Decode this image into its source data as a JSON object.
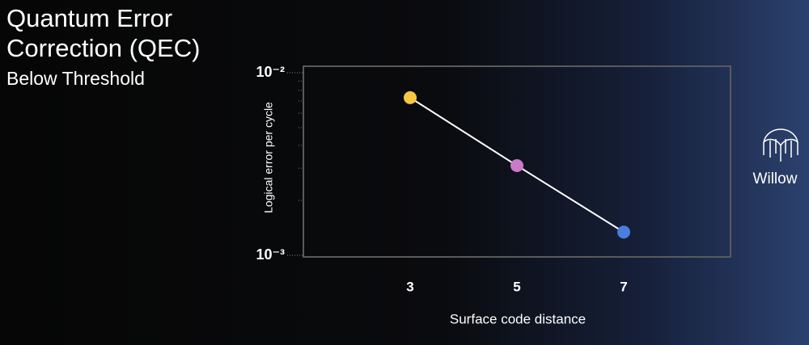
{
  "slide": {
    "title_lines": [
      "Quantum Error",
      "Correction (QEC)"
    ],
    "subtitle": "Below Threshold",
    "brand": "Willow"
  },
  "chart_data": {
    "type": "line",
    "x_label": "Surface code distance",
    "y_label": "Logical error per cycle",
    "x": [
      3,
      5,
      7
    ],
    "values": [
      0.0073,
      0.0031,
      0.00134
    ],
    "point_colors": [
      "#f5c842",
      "#c97bc9",
      "#4a7de0"
    ],
    "color": "#ffffff",
    "xlim": [
      1,
      9
    ],
    "xticks": [
      3,
      5,
      7
    ],
    "ylim": [
      0.001,
      0.01
    ],
    "log_y": true,
    "yticks": [
      {
        "value": 0.001,
        "label": "10⁻³"
      },
      {
        "value": 0.01,
        "label": "10⁻²"
      }
    ],
    "yminorticks": [
      0.002,
      0.003,
      0.004,
      0.005,
      0.006,
      0.007,
      0.008,
      0.009
    ]
  }
}
